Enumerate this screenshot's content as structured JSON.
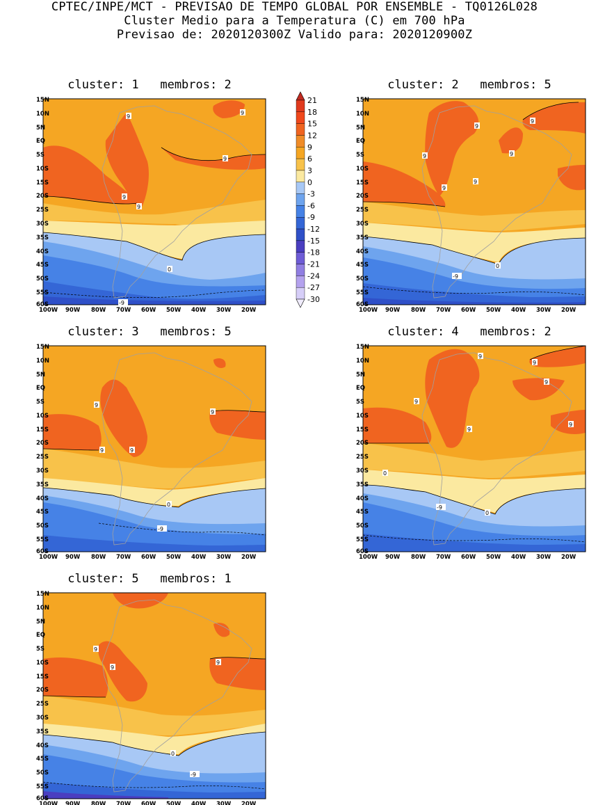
{
  "header": {
    "line1": "CPTEC/INPE/MCT - PREVISAO DE TEMPO GLOBAL POR ENSEMBLE - TQ0126L028",
    "line2": "Cluster Medio para a Temperatura (C) em 700 hPa",
    "line3": "Previsao de: 2020120300Z   Valido para: 2020120900Z"
  },
  "panels": [
    {
      "title": "cluster: 1   membros: 2"
    },
    {
      "title": "cluster: 2   membros: 5"
    },
    {
      "title": "cluster: 3   membros: 5"
    },
    {
      "title": "cluster: 4   membros: 2"
    },
    {
      "title": "cluster: 5   membros: 1"
    }
  ],
  "axes": {
    "lat_labels": [
      "15N",
      "10N",
      "5N",
      "EQ",
      "5S",
      "10S",
      "15S",
      "20S",
      "25S",
      "30S",
      "35S",
      "40S",
      "45S",
      "50S",
      "55S",
      "60S"
    ],
    "lon_labels": [
      "100W",
      "90W",
      "80W",
      "70W",
      "60W",
      "50W",
      "40W",
      "30W",
      "20W"
    ]
  },
  "colorbar": {
    "levels": [
      "21",
      "18",
      "15",
      "12",
      "9",
      "6",
      "3",
      "0",
      "-3",
      "-6",
      "-9",
      "-12",
      "-15",
      "-18",
      "-21",
      "-24",
      "-27",
      "-30"
    ],
    "colors": [
      "#c02a20",
      "#e03a1e",
      "#f0481c",
      "#f06420",
      "#f08c28",
      "#f5a623",
      "#f8c24a",
      "#fbe9a0",
      "#a8c8f5",
      "#6ea4ee",
      "#4682e6",
      "#3466d6",
      "#2f50c8",
      "#4a3ec0",
      "#6e5cd6",
      "#907ee2",
      "#b4a2ee",
      "#d6cef8",
      "#f0ecfc"
    ]
  },
  "contour_labels": {
    "p1": [
      "9",
      "9",
      "9",
      "9",
      "9",
      "0",
      "-9"
    ],
    "p2": [
      "9",
      "9",
      "9",
      "9",
      "9",
      "9",
      "0",
      "-9"
    ],
    "p3": [
      "9",
      "9",
      "9",
      "9",
      "0",
      "-9"
    ],
    "p4": [
      "9",
      "9",
      "9",
      "9",
      "9",
      "9",
      "0",
      "0",
      "-9"
    ],
    "p5": [
      "9",
      "9",
      "9",
      "0",
      "-9"
    ]
  }
}
